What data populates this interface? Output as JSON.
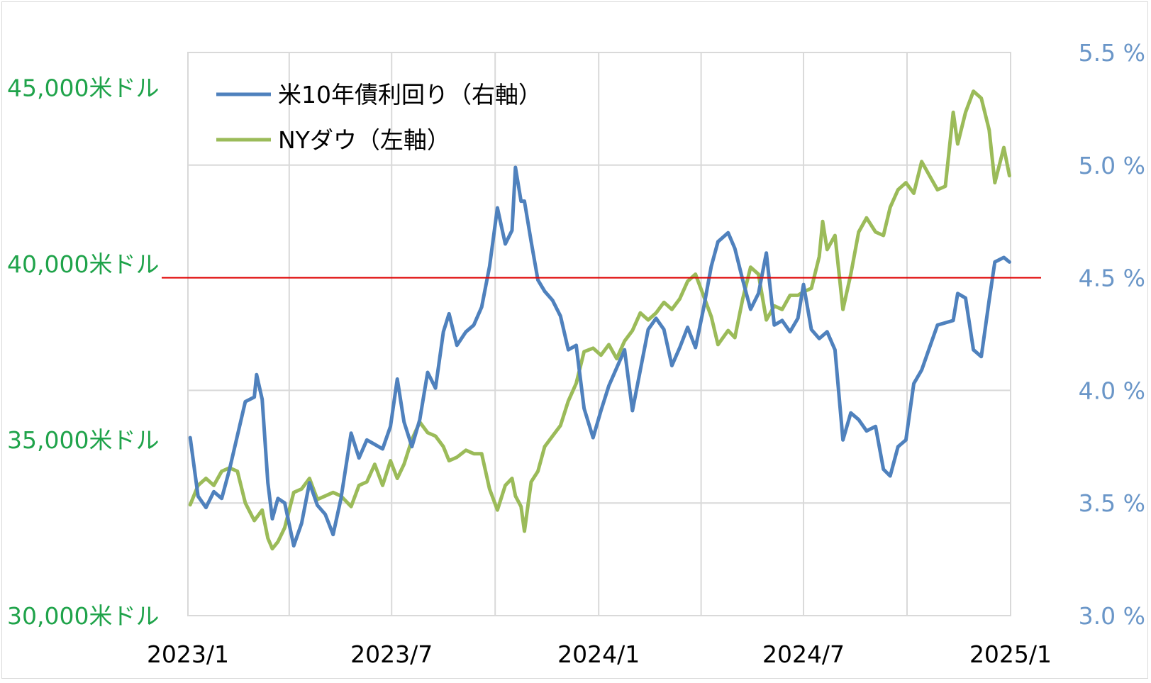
{
  "chart_data": {
    "type": "line",
    "title": "",
    "xlabel": "",
    "x_ticks": [
      "2023/1",
      "2023/7",
      "2024/1",
      "2024/7",
      "2025/1"
    ],
    "x_range": [
      "2023-01-01",
      "2025-01-01"
    ],
    "y_left": {
      "ticks": [
        "30,000米ドル",
        "35,000米ドル",
        "40,000米ドル",
        "45,000米ドル"
      ],
      "range": [
        30000,
        46000
      ],
      "color": "#1fa34a"
    },
    "y_right": {
      "ticks": [
        "3.0 %",
        "3.5 %",
        "4.0 %",
        "4.5 %",
        "5.0 %",
        "5.5 %"
      ],
      "range": [
        3.0,
        5.5
      ],
      "color": "#6a96c8"
    },
    "reference_line": {
      "axis": "right",
      "value": 4.5,
      "color": "#e00000"
    },
    "grid": true,
    "legend_position": "top-left",
    "series": [
      {
        "name": "米10年債利回り（右軸）",
        "axis": "right",
        "color": "#4f81bd",
        "points": [
          [
            "2023-01-03",
            3.79
          ],
          [
            "2023-01-10",
            3.53
          ],
          [
            "2023-01-17",
            3.48
          ],
          [
            "2023-01-24",
            3.55
          ],
          [
            "2023-01-31",
            3.52
          ],
          [
            "2023-02-07",
            3.65
          ],
          [
            "2023-02-14",
            3.8
          ],
          [
            "2023-02-21",
            3.95
          ],
          [
            "2023-03-01",
            3.97
          ],
          [
            "2023-03-03",
            4.07
          ],
          [
            "2023-03-08",
            3.96
          ],
          [
            "2023-03-13",
            3.59
          ],
          [
            "2023-03-17",
            3.43
          ],
          [
            "2023-03-22",
            3.52
          ],
          [
            "2023-03-28",
            3.5
          ],
          [
            "2023-04-05",
            3.31
          ],
          [
            "2023-04-12",
            3.41
          ],
          [
            "2023-04-19",
            3.59
          ],
          [
            "2023-04-26",
            3.49
          ],
          [
            "2023-05-03",
            3.45
          ],
          [
            "2023-05-10",
            3.36
          ],
          [
            "2023-05-17",
            3.52
          ],
          [
            "2023-05-26",
            3.81
          ],
          [
            "2023-06-02",
            3.7
          ],
          [
            "2023-06-09",
            3.78
          ],
          [
            "2023-06-16",
            3.76
          ],
          [
            "2023-06-23",
            3.74
          ],
          [
            "2023-06-30",
            3.84
          ],
          [
            "2023-07-06",
            4.05
          ],
          [
            "2023-07-12",
            3.86
          ],
          [
            "2023-07-19",
            3.75
          ],
          [
            "2023-07-26",
            3.87
          ],
          [
            "2023-08-02",
            4.08
          ],
          [
            "2023-08-09",
            4.01
          ],
          [
            "2023-08-16",
            4.26
          ],
          [
            "2023-08-21",
            4.34
          ],
          [
            "2023-08-28",
            4.2
          ],
          [
            "2023-09-05",
            4.26
          ],
          [
            "2023-09-12",
            4.29
          ],
          [
            "2023-09-19",
            4.37
          ],
          [
            "2023-09-26",
            4.55
          ],
          [
            "2023-10-03",
            4.81
          ],
          [
            "2023-10-10",
            4.65
          ],
          [
            "2023-10-16",
            4.71
          ],
          [
            "2023-10-19",
            4.99
          ],
          [
            "2023-10-24",
            4.84
          ],
          [
            "2023-10-27",
            4.84
          ],
          [
            "2023-11-02",
            4.66
          ],
          [
            "2023-11-08",
            4.49
          ],
          [
            "2023-11-14",
            4.44
          ],
          [
            "2023-11-21",
            4.4
          ],
          [
            "2023-11-28",
            4.33
          ],
          [
            "2023-12-05",
            4.18
          ],
          [
            "2023-12-12",
            4.2
          ],
          [
            "2023-12-19",
            3.92
          ],
          [
            "2023-12-27",
            3.79
          ],
          [
            "2024-01-03",
            3.91
          ],
          [
            "2024-01-10",
            4.02
          ],
          [
            "2024-01-17",
            4.1
          ],
          [
            "2024-01-24",
            4.18
          ],
          [
            "2024-01-31",
            3.91
          ],
          [
            "2024-02-07",
            4.09
          ],
          [
            "2024-02-14",
            4.27
          ],
          [
            "2024-02-21",
            4.32
          ],
          [
            "2024-02-28",
            4.27
          ],
          [
            "2024-03-06",
            4.11
          ],
          [
            "2024-03-13",
            4.19
          ],
          [
            "2024-03-20",
            4.28
          ],
          [
            "2024-03-27",
            4.19
          ],
          [
            "2024-04-03",
            4.36
          ],
          [
            "2024-04-10",
            4.55
          ],
          [
            "2024-04-16",
            4.66
          ],
          [
            "2024-04-25",
            4.7
          ],
          [
            "2024-05-01",
            4.63
          ],
          [
            "2024-05-08",
            4.49
          ],
          [
            "2024-05-15",
            4.36
          ],
          [
            "2024-05-22",
            4.43
          ],
          [
            "2024-05-29",
            4.61
          ],
          [
            "2024-06-05",
            4.29
          ],
          [
            "2024-06-12",
            4.31
          ],
          [
            "2024-06-19",
            4.26
          ],
          [
            "2024-06-26",
            4.32
          ],
          [
            "2024-07-01",
            4.47
          ],
          [
            "2024-07-08",
            4.27
          ],
          [
            "2024-07-15",
            4.23
          ],
          [
            "2024-07-22",
            4.26
          ],
          [
            "2024-07-29",
            4.18
          ],
          [
            "2024-08-05",
            3.78
          ],
          [
            "2024-08-12",
            3.9
          ],
          [
            "2024-08-19",
            3.87
          ],
          [
            "2024-08-26",
            3.82
          ],
          [
            "2024-09-03",
            3.84
          ],
          [
            "2024-09-10",
            3.65
          ],
          [
            "2024-09-16",
            3.62
          ],
          [
            "2024-09-23",
            3.75
          ],
          [
            "2024-09-30",
            3.78
          ],
          [
            "2024-10-07",
            4.03
          ],
          [
            "2024-10-14",
            4.09
          ],
          [
            "2024-10-21",
            4.19
          ],
          [
            "2024-10-28",
            4.29
          ],
          [
            "2024-11-04",
            4.3
          ],
          [
            "2024-11-11",
            4.31
          ],
          [
            "2024-11-15",
            4.43
          ],
          [
            "2024-11-22",
            4.41
          ],
          [
            "2024-11-29",
            4.18
          ],
          [
            "2024-12-06",
            4.15
          ],
          [
            "2024-12-13",
            4.4
          ],
          [
            "2024-12-18",
            4.57
          ],
          [
            "2024-12-26",
            4.59
          ],
          [
            "2024-12-31",
            4.57
          ]
        ]
      },
      {
        "name": "NYダウ（左軸）",
        "axis": "left",
        "color": "#9bbb59",
        "points": [
          [
            "2023-01-03",
            33150
          ],
          [
            "2023-01-10",
            33700
          ],
          [
            "2023-01-17",
            33900
          ],
          [
            "2023-01-24",
            33700
          ],
          [
            "2023-01-31",
            34100
          ],
          [
            "2023-02-07",
            34200
          ],
          [
            "2023-02-14",
            34100
          ],
          [
            "2023-02-21",
            33200
          ],
          [
            "2023-03-01",
            32700
          ],
          [
            "2023-03-08",
            33000
          ],
          [
            "2023-03-13",
            32200
          ],
          [
            "2023-03-17",
            31900
          ],
          [
            "2023-03-22",
            32100
          ],
          [
            "2023-03-28",
            32500
          ],
          [
            "2023-04-05",
            33500
          ],
          [
            "2023-04-12",
            33600
          ],
          [
            "2023-04-19",
            33900
          ],
          [
            "2023-04-26",
            33300
          ],
          [
            "2023-05-03",
            33400
          ],
          [
            "2023-05-10",
            33500
          ],
          [
            "2023-05-17",
            33400
          ],
          [
            "2023-05-26",
            33100
          ],
          [
            "2023-06-02",
            33700
          ],
          [
            "2023-06-09",
            33800
          ],
          [
            "2023-06-16",
            34300
          ],
          [
            "2023-06-23",
            33700
          ],
          [
            "2023-06-30",
            34400
          ],
          [
            "2023-07-06",
            33900
          ],
          [
            "2023-07-12",
            34300
          ],
          [
            "2023-07-19",
            35000
          ],
          [
            "2023-07-26",
            35500
          ],
          [
            "2023-08-02",
            35200
          ],
          [
            "2023-08-09",
            35100
          ],
          [
            "2023-08-16",
            34800
          ],
          [
            "2023-08-21",
            34400
          ],
          [
            "2023-08-28",
            34500
          ],
          [
            "2023-09-05",
            34700
          ],
          [
            "2023-09-12",
            34600
          ],
          [
            "2023-09-19",
            34600
          ],
          [
            "2023-09-26",
            33600
          ],
          [
            "2023-10-03",
            33000
          ],
          [
            "2023-10-10",
            33700
          ],
          [
            "2023-10-16",
            33900
          ],
          [
            "2023-10-19",
            33400
          ],
          [
            "2023-10-24",
            33100
          ],
          [
            "2023-10-27",
            32400
          ],
          [
            "2023-11-02",
            33800
          ],
          [
            "2023-11-08",
            34100
          ],
          [
            "2023-11-14",
            34800
          ],
          [
            "2023-11-21",
            35100
          ],
          [
            "2023-11-28",
            35400
          ],
          [
            "2023-12-05",
            36100
          ],
          [
            "2023-12-12",
            36600
          ],
          [
            "2023-12-19",
            37500
          ],
          [
            "2023-12-27",
            37600
          ],
          [
            "2024-01-03",
            37400
          ],
          [
            "2024-01-10",
            37700
          ],
          [
            "2024-01-17",
            37300
          ],
          [
            "2024-01-24",
            37800
          ],
          [
            "2024-01-31",
            38100
          ],
          [
            "2024-02-07",
            38600
          ],
          [
            "2024-02-14",
            38400
          ],
          [
            "2024-02-21",
            38600
          ],
          [
            "2024-02-28",
            38900
          ],
          [
            "2024-03-06",
            38700
          ],
          [
            "2024-03-13",
            39000
          ],
          [
            "2024-03-20",
            39500
          ],
          [
            "2024-03-27",
            39700
          ],
          [
            "2024-04-03",
            39100
          ],
          [
            "2024-04-10",
            38500
          ],
          [
            "2024-04-16",
            37700
          ],
          [
            "2024-04-25",
            38100
          ],
          [
            "2024-05-01",
            37900
          ],
          [
            "2024-05-08",
            39000
          ],
          [
            "2024-05-15",
            39900
          ],
          [
            "2024-05-22",
            39700
          ],
          [
            "2024-05-29",
            38400
          ],
          [
            "2024-06-05",
            38800
          ],
          [
            "2024-06-12",
            38700
          ],
          [
            "2024-06-19",
            39100
          ],
          [
            "2024-06-26",
            39100
          ],
          [
            "2024-07-01",
            39200
          ],
          [
            "2024-07-08",
            39300
          ],
          [
            "2024-07-15",
            40200
          ],
          [
            "2024-07-18",
            41200
          ],
          [
            "2024-07-22",
            40400
          ],
          [
            "2024-07-29",
            40800
          ],
          [
            "2024-08-05",
            38700
          ],
          [
            "2024-08-12",
            39700
          ],
          [
            "2024-08-19",
            40900
          ],
          [
            "2024-08-26",
            41300
          ],
          [
            "2024-09-03",
            40900
          ],
          [
            "2024-09-10",
            40800
          ],
          [
            "2024-09-16",
            41600
          ],
          [
            "2024-09-23",
            42100
          ],
          [
            "2024-09-30",
            42300
          ],
          [
            "2024-10-07",
            42000
          ],
          [
            "2024-10-14",
            42900
          ],
          [
            "2024-10-21",
            42500
          ],
          [
            "2024-10-28",
            42100
          ],
          [
            "2024-11-04",
            42200
          ],
          [
            "2024-11-11",
            44300
          ],
          [
            "2024-11-15",
            43400
          ],
          [
            "2024-11-22",
            44300
          ],
          [
            "2024-11-29",
            44900
          ],
          [
            "2024-12-06",
            44700
          ],
          [
            "2024-12-13",
            43800
          ],
          [
            "2024-12-18",
            42300
          ],
          [
            "2024-12-26",
            43300
          ],
          [
            "2024-12-31",
            42500
          ]
        ]
      }
    ]
  }
}
